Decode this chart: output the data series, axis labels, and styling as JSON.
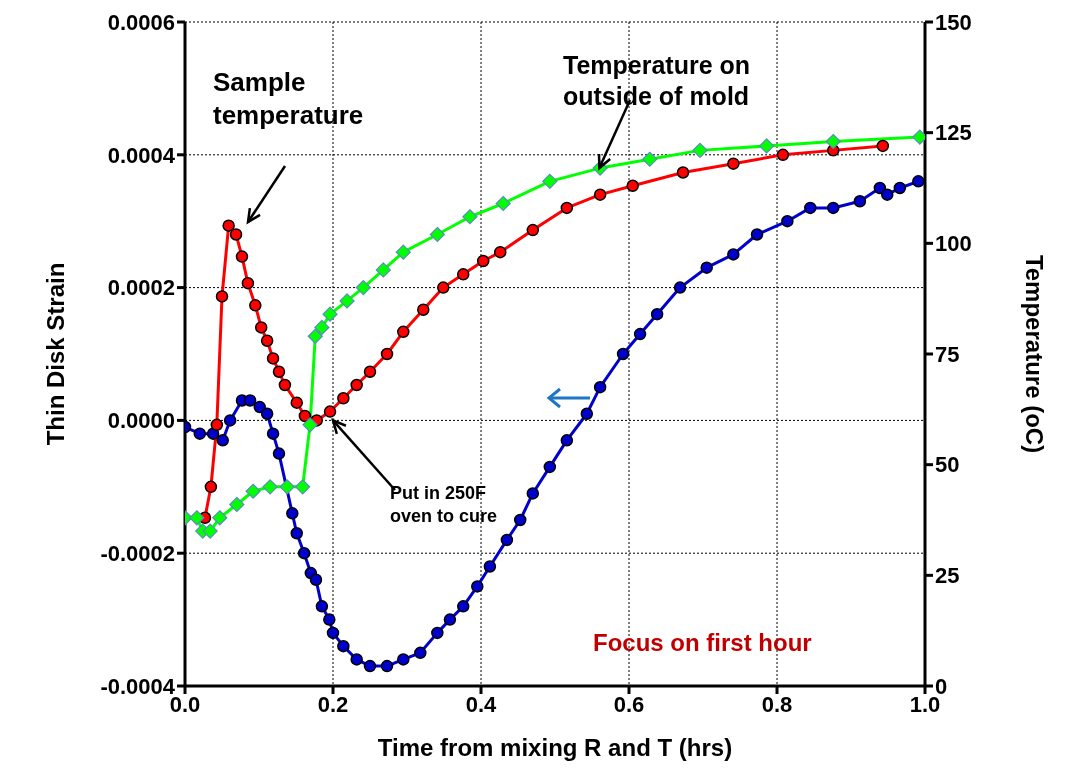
{
  "chart_data": {
    "type": "line",
    "xlabel": "Time from mixing R and T (hrs)",
    "ylabel": "Thin Disk Strain",
    "y2label": "Temperature (oC)",
    "xlim": [
      0,
      1
    ],
    "xticks": [
      {
        "value": 0,
        "label": "0.0"
      },
      {
        "value": 0.2,
        "label": "0.2"
      },
      {
        "value": 0.4,
        "label": "0.4"
      },
      {
        "value": 0.6,
        "label": "0.6"
      },
      {
        "value": 0.8,
        "label": "0.8"
      },
      {
        "value": 1,
        "label": "1.0"
      }
    ],
    "ylim": [
      -0.0004,
      0.0006
    ],
    "yticks": [
      {
        "value": -0.0004,
        "label": "-0.0004"
      },
      {
        "value": -0.0002,
        "label": "-0.0002"
      },
      {
        "value": 0,
        "label": "0.0000"
      },
      {
        "value": 0.0002,
        "label": "0.0002"
      },
      {
        "value": 0.0004,
        "label": "0.0004"
      },
      {
        "value": 0.0006,
        "label": "0.0006"
      }
    ],
    "y2lim": [
      0,
      150
    ],
    "y2ticks": [
      0,
      25,
      50,
      75,
      100,
      125,
      150
    ],
    "grid": true,
    "line_style": "solid",
    "series": [
      {
        "color": "#0000cc",
        "marker": "circle",
        "x": [
          0,
          0.02,
          0.038,
          0.051,
          0.061,
          0.077,
          0.088,
          0.101,
          0.111,
          0.119,
          0.127,
          0.145,
          0.151,
          0.161,
          0.17,
          0.177,
          0.185,
          0.195,
          0.2,
          0.214,
          0.232,
          0.25,
          0.273,
          0.295,
          0.318,
          0.341,
          0.358,
          0.376,
          0.395,
          0.412,
          0.435,
          0.453,
          0.47,
          0.493,
          0.516,
          0.543,
          0.561,
          0.592,
          0.615,
          0.638,
          0.669,
          0.705,
          0.741,
          0.773,
          0.814,
          0.845,
          0.876,
          0.912,
          0.939,
          0.949,
          0.966,
          0.991
        ],
        "values": [
          -1e-05,
          -2e-05,
          -2e-05,
          -3e-05,
          0,
          3e-05,
          3e-05,
          2e-05,
          1e-05,
          -2e-05,
          -5e-05,
          -0.00014,
          -0.00017,
          -0.0002,
          -0.00023,
          -0.00024,
          -0.00028,
          -0.0003,
          -0.00032,
          -0.00034,
          -0.00036,
          -0.00037,
          -0.00037,
          -0.00036,
          -0.00035,
          -0.00032,
          -0.0003,
          -0.00028,
          -0.00025,
          -0.00022,
          -0.00018,
          -0.00015,
          -0.00011,
          -7e-05,
          -3e-05,
          1e-05,
          5e-05,
          0.0001,
          0.00013,
          0.00016,
          0.0002,
          0.00023,
          0.00025,
          0.00028,
          0.0003,
          0.00032,
          0.00032,
          0.00033,
          0.00035,
          0.00034,
          0.00035,
          0.00036
        ]
      },
      {
        "color": "#ff0000",
        "marker": "circle",
        "axis": "y2",
        "x": [
          0.027,
          0.035,
          0.043,
          0.05,
          0.059,
          0.069,
          0.077,
          0.085,
          0.095,
          0.103,
          0.111,
          0.119,
          0.127,
          0.135,
          0.151,
          0.162,
          0.178,
          0.196,
          0.214,
          0.232,
          0.25,
          0.273,
          0.295,
          0.322,
          0.349,
          0.376,
          0.403,
          0.426,
          0.47,
          0.516,
          0.561,
          0.605,
          0.673,
          0.741,
          0.808,
          0.876,
          0.943
        ],
        "values": [
          38,
          45,
          59,
          88,
          104,
          102,
          97,
          91,
          86,
          81,
          78,
          74,
          71,
          68,
          64,
          61,
          60,
          62,
          65,
          68,
          71,
          75,
          80,
          85,
          90,
          93,
          96,
          98,
          103,
          108,
          111,
          113,
          116,
          118,
          120,
          121,
          122
        ]
      },
      {
        "color": "#00ff00",
        "marker": "diamond",
        "axis": "y2",
        "x": [
          0,
          0.016,
          0.024,
          0.034,
          0.047,
          0.07,
          0.092,
          0.115,
          0.138,
          0.159,
          0.169,
          0.176,
          0.185,
          0.196,
          0.219,
          0.241,
          0.268,
          0.295,
          0.341,
          0.385,
          0.43,
          0.493,
          0.561,
          0.628,
          0.696,
          0.786,
          0.876,
          0.993
        ],
        "values": [
          38,
          38,
          35,
          35,
          38,
          41,
          44,
          45,
          45,
          45,
          59,
          79,
          81,
          84,
          87,
          90,
          94,
          98,
          102,
          106,
          109,
          114,
          117,
          119,
          121,
          122,
          123,
          124
        ]
      }
    ],
    "annotations": [
      "Sample temperature",
      {
        "text": "Temperature on outside of mold",
        "x": 0.56,
        "y": 0.00038
      },
      {
        "text": "Put in 250F oven to cure",
        "x": 0.2,
        "y": 0
      },
      "Focus on first hour"
    ]
  }
}
